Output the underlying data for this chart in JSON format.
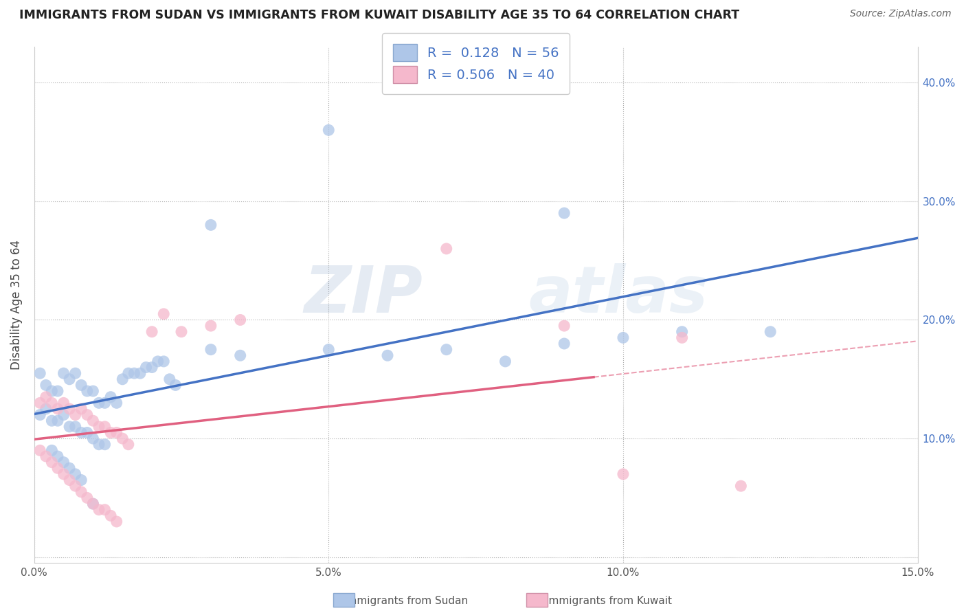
{
  "title": "IMMIGRANTS FROM SUDAN VS IMMIGRANTS FROM KUWAIT DISABILITY AGE 35 TO 64 CORRELATION CHART",
  "source": "Source: ZipAtlas.com",
  "ylabel": "Disability Age 35 to 64",
  "right_yticks": [
    0.0,
    0.1,
    0.2,
    0.3,
    0.4
  ],
  "right_yticklabels": [
    "",
    "10.0%",
    "20.0%",
    "30.0%",
    "40.0%"
  ],
  "xlim": [
    0.0,
    0.15
  ],
  "ylim": [
    -0.005,
    0.43
  ],
  "legend_r1": "R =  0.128   N = 56",
  "legend_r2": "R = 0.506   N = 40",
  "color_sudan": "#aec6e8",
  "color_kuwait": "#f5b8cc",
  "color_sudan_line": "#4472c4",
  "color_kuwait_line": "#e06080",
  "watermark_zip": "ZIP",
  "watermark_atlas": "atlas",
  "sudan_x": [
    0.005,
    0.001,
    0.002,
    0.003,
    0.004,
    0.006,
    0.007,
    0.008,
    0.009,
    0.01,
    0.011,
    0.012,
    0.013,
    0.014,
    0.015,
    0.016,
    0.017,
    0.018,
    0.019,
    0.02,
    0.021,
    0.022,
    0.023,
    0.024,
    0.001,
    0.002,
    0.003,
    0.004,
    0.005,
    0.006,
    0.007,
    0.008,
    0.009,
    0.01,
    0.011,
    0.012,
    0.003,
    0.004,
    0.005,
    0.006,
    0.007,
    0.008,
    0.01,
    0.03,
    0.05,
    0.07,
    0.09,
    0.03,
    0.05,
    0.09,
    0.11,
    0.125,
    0.035,
    0.06,
    0.08,
    0.1
  ],
  "sudan_y": [
    0.155,
    0.155,
    0.145,
    0.14,
    0.14,
    0.15,
    0.155,
    0.145,
    0.14,
    0.14,
    0.13,
    0.13,
    0.135,
    0.13,
    0.15,
    0.155,
    0.155,
    0.155,
    0.16,
    0.16,
    0.165,
    0.165,
    0.15,
    0.145,
    0.12,
    0.125,
    0.115,
    0.115,
    0.12,
    0.11,
    0.11,
    0.105,
    0.105,
    0.1,
    0.095,
    0.095,
    0.09,
    0.085,
    0.08,
    0.075,
    0.07,
    0.065,
    0.045,
    0.175,
    0.175,
    0.175,
    0.18,
    0.28,
    0.36,
    0.29,
    0.19,
    0.19,
    0.17,
    0.17,
    0.165,
    0.185
  ],
  "kuwait_x": [
    0.001,
    0.002,
    0.003,
    0.004,
    0.005,
    0.006,
    0.007,
    0.008,
    0.009,
    0.01,
    0.011,
    0.012,
    0.013,
    0.014,
    0.015,
    0.016,
    0.001,
    0.002,
    0.003,
    0.004,
    0.005,
    0.006,
    0.007,
    0.008,
    0.009,
    0.01,
    0.011,
    0.012,
    0.013,
    0.014,
    0.02,
    0.022,
    0.025,
    0.03,
    0.035,
    0.07,
    0.09,
    0.11,
    0.12,
    0.1
  ],
  "kuwait_y": [
    0.13,
    0.135,
    0.13,
    0.125,
    0.13,
    0.125,
    0.12,
    0.125,
    0.12,
    0.115,
    0.11,
    0.11,
    0.105,
    0.105,
    0.1,
    0.095,
    0.09,
    0.085,
    0.08,
    0.075,
    0.07,
    0.065,
    0.06,
    0.055,
    0.05,
    0.045,
    0.04,
    0.04,
    0.035,
    0.03,
    0.19,
    0.205,
    0.19,
    0.195,
    0.2,
    0.26,
    0.195,
    0.185,
    0.06,
    0.07
  ]
}
